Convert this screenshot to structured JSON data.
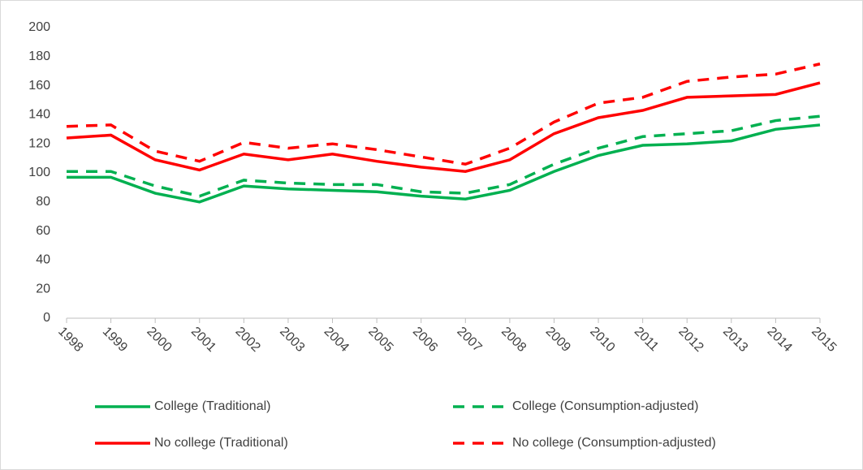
{
  "chart_data": {
    "type": "line",
    "categories": [
      "1998",
      "1999",
      "2000",
      "2001",
      "2002",
      "2003",
      "2004",
      "2005",
      "2006",
      "2007",
      "2008",
      "2009",
      "2010",
      "2011",
      "2012",
      "2013",
      "2014",
      "2015"
    ],
    "ylim": [
      0,
      200
    ],
    "yticks": [
      0,
      20,
      40,
      60,
      80,
      100,
      120,
      140,
      160,
      180,
      200
    ],
    "grid": false,
    "series": [
      {
        "name": "College (Traditional)",
        "color": "#00b050",
        "dashed": false,
        "values": [
          97,
          97,
          86,
          80,
          91,
          89,
          88,
          87,
          84,
          82,
          88,
          101,
          112,
          119,
          120,
          122,
          130,
          133
        ]
      },
      {
        "name": "College (Consumption-adjusted)",
        "color": "#00b050",
        "dashed": true,
        "values": [
          101,
          101,
          91,
          84,
          95,
          93,
          92,
          92,
          87,
          86,
          92,
          106,
          117,
          125,
          127,
          129,
          136,
          139
        ]
      },
      {
        "name": "No college (Traditional)",
        "color": "#ff0000",
        "dashed": false,
        "values": [
          124,
          126,
          109,
          102,
          113,
          109,
          113,
          108,
          104,
          101,
          109,
          127,
          138,
          143,
          152,
          153,
          154,
          162
        ]
      },
      {
        "name": "No college (Consumption-adjusted)",
        "color": "#ff0000",
        "dashed": true,
        "values": [
          132,
          133,
          115,
          108,
          121,
          117,
          120,
          116,
          111,
          106,
          117,
          135,
          148,
          152,
          163,
          166,
          168,
          175
        ]
      }
    ]
  }
}
